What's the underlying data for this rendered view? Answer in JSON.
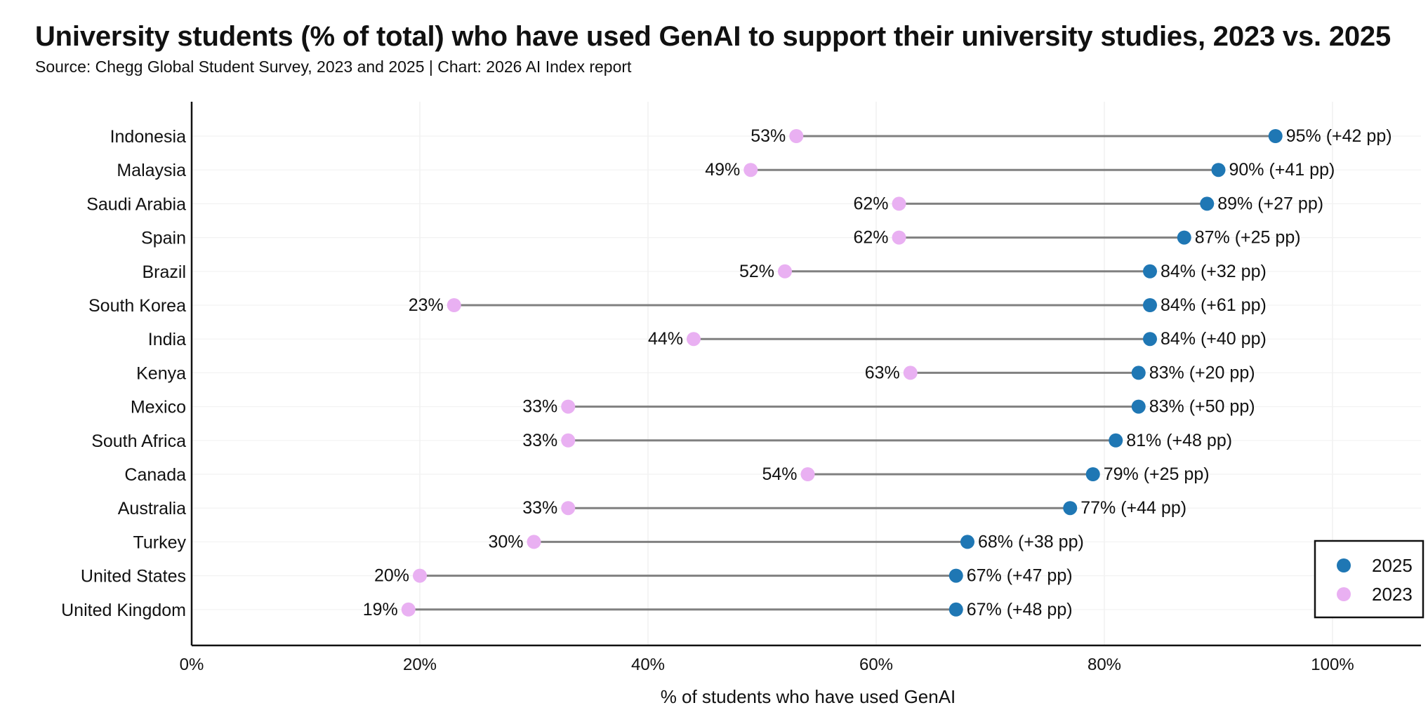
{
  "title": "University students (% of total) who have used GenAI to support their university studies, 2023 vs. 2025",
  "subtitle": "Source: Chegg Global Student Survey, 2023 and 2025 | Chart: 2026 AI Index report",
  "chart_data": {
    "type": "dumbbell",
    "categories": [
      "Indonesia",
      "Malaysia",
      "Saudi Arabia",
      "Spain",
      "Brazil",
      "South Korea",
      "India",
      "Kenya",
      "Mexico",
      "South Africa",
      "Canada",
      "Australia",
      "Turkey",
      "United States",
      "United Kingdom"
    ],
    "series": [
      {
        "name": "2025",
        "color": "#1f77b4",
        "values": [
          95,
          90,
          89,
          87,
          84,
          84,
          84,
          83,
          83,
          81,
          79,
          77,
          68,
          67,
          67
        ]
      },
      {
        "name": "2023",
        "color": "#e9b0f2",
        "values": [
          53,
          49,
          62,
          62,
          52,
          23,
          44,
          63,
          33,
          33,
          54,
          33,
          30,
          20,
          19
        ]
      }
    ],
    "labels_2025": [
      "95% (+42 pp)",
      "90% (+41 pp)",
      "89% (+27 pp)",
      "87% (+25 pp)",
      "84% (+32 pp)",
      "84% (+61 pp)",
      "84% (+40 pp)",
      "83% (+20 pp)",
      "83% (+50 pp)",
      "81% (+48 pp)",
      "79% (+25 pp)",
      "77% (+44 pp)",
      "68% (+38 pp)",
      "67% (+47 pp)",
      "67% (+48 pp)"
    ],
    "labels_2023": [
      "53%",
      "49%",
      "62%",
      "62%",
      "52%",
      "23%",
      "44%",
      "63%",
      "33%",
      "33%",
      "54%",
      "33%",
      "30%",
      "20%",
      "19%"
    ],
    "xlabel": "% of students who have used GenAI",
    "xlim": [
      0,
      108
    ],
    "xticks": [
      0,
      20,
      40,
      60,
      80,
      100
    ],
    "xtick_labels": [
      "0%",
      "20%",
      "40%",
      "60%",
      "80%",
      "100%"
    ],
    "connector_color": "#808080",
    "grid": true,
    "legend_position": "bottom-right",
    "legend": [
      "2025",
      "2023"
    ]
  }
}
